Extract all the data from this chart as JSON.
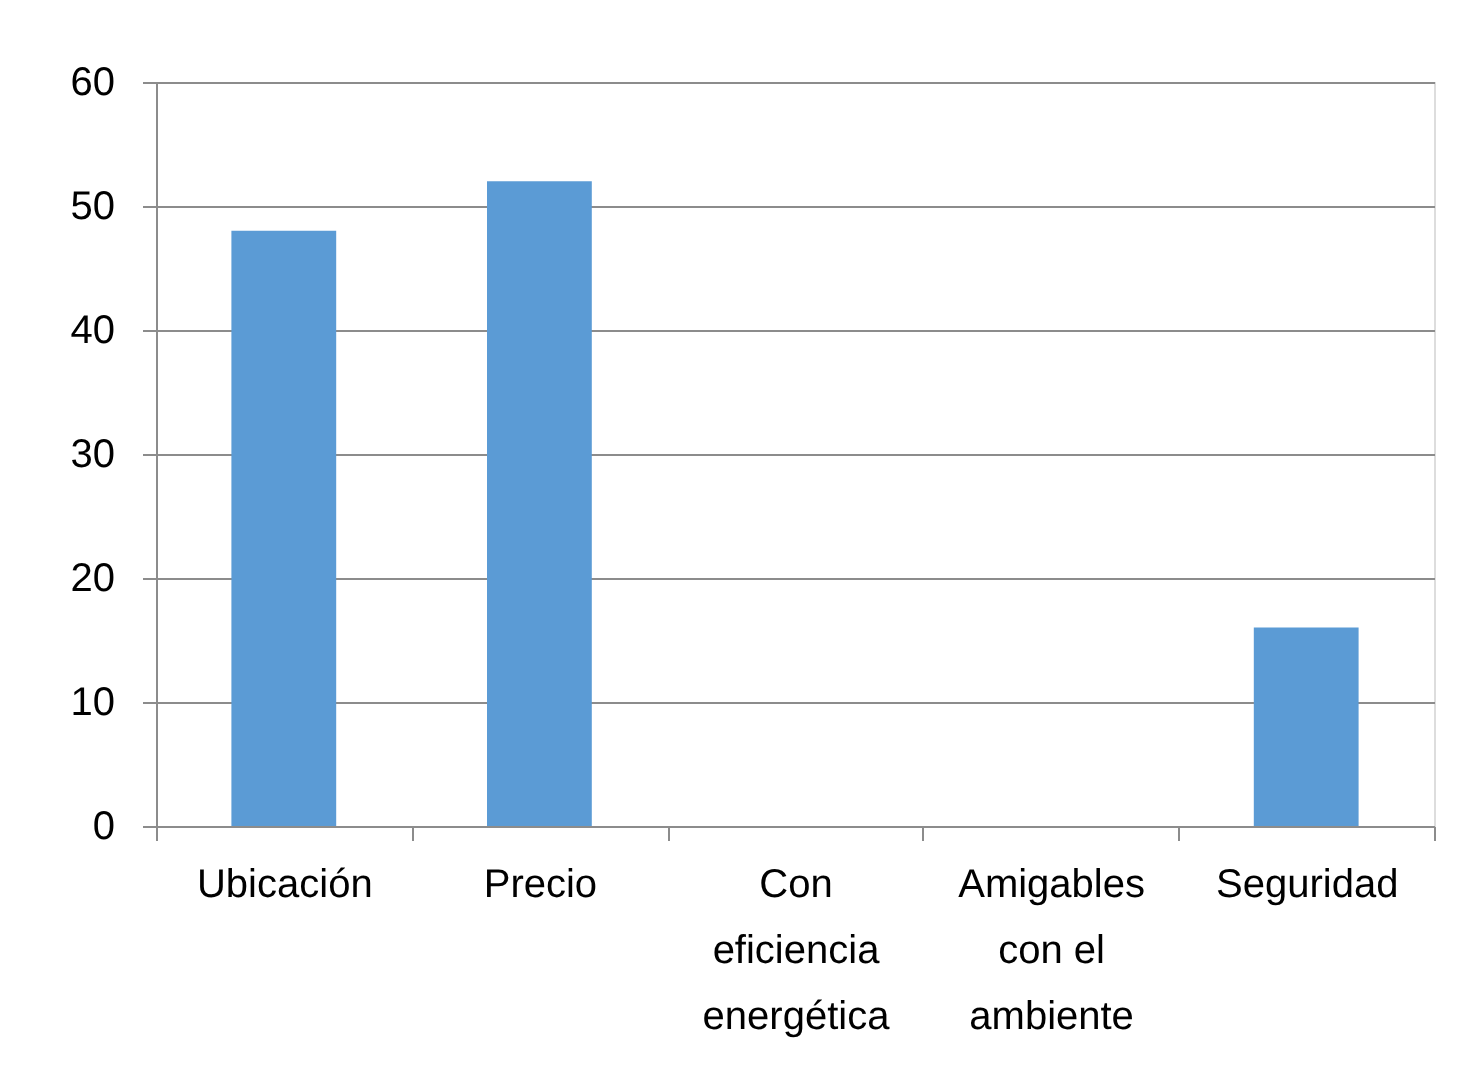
{
  "chart_data": {
    "type": "bar",
    "categories": [
      "Ubicación",
      "Precio",
      "Con eficiencia energética",
      "Amigables con el ambiente",
      "Seguridad"
    ],
    "values": [
      48,
      52,
      0,
      0,
      16
    ],
    "color": "#5b9bd5",
    "ylim": [
      0,
      60
    ],
    "yticks": [
      0,
      10,
      20,
      30,
      40,
      50,
      60
    ],
    "grid": "y"
  }
}
